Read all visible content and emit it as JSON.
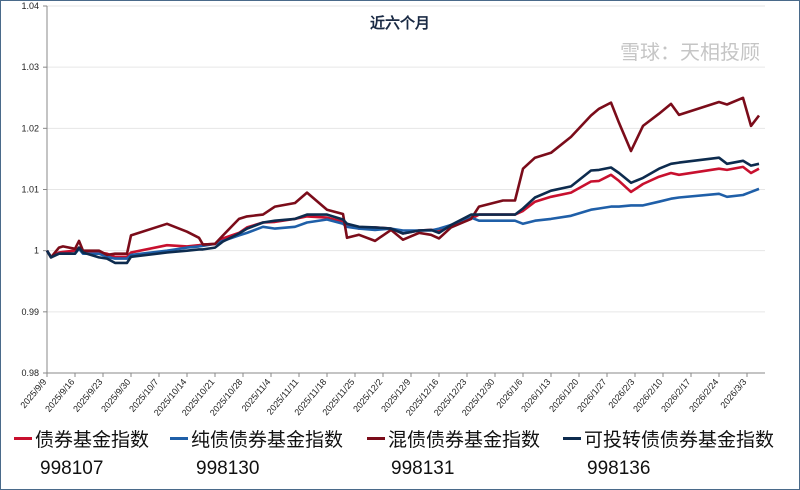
{
  "chart_data": {
    "type": "line",
    "title": "近六个月",
    "xlabel": "",
    "ylabel": "",
    "ylim": [
      0.98,
      1.04
    ],
    "yticks": [
      "0.98",
      "0.99",
      "1",
      "1.01",
      "1.02",
      "1.03",
      "1.04"
    ],
    "xticks": [
      "2025/9/9",
      "2025/9/16",
      "2025/9/23",
      "2025/9/30",
      "2025/10/7",
      "2025/10/14",
      "2025/10/21",
      "2025/10/28",
      "2025/11/4",
      "2025/11/11",
      "2025/11/18",
      "2025/11/25",
      "2025/12/2",
      "2025/12/9",
      "2025/12/16",
      "2025/12/23",
      "2025/12/30",
      "2026/1/6",
      "2026/1/13",
      "2026/1/20",
      "2026/1/27",
      "2026/2/3",
      "2026/2/10",
      "2026/2/17",
      "2026/2/24",
      "2026/3/3"
    ],
    "grid": "horizontal",
    "legend": "bottom",
    "x": [
      "2025-09-09",
      "2025-09-10",
      "2025-09-12",
      "2025-09-13",
      "2025-09-16",
      "2025-09-17",
      "2025-09-18",
      "2025-09-22",
      "2025-09-24",
      "2025-09-26",
      "2025-09-29",
      "2025-09-30",
      "2025-10-09",
      "2025-10-14",
      "2025-10-17",
      "2025-10-18",
      "2025-10-21",
      "2025-10-23",
      "2025-10-27",
      "2025-10-29",
      "2025-11-02",
      "2025-11-05",
      "2025-11-10",
      "2025-11-13",
      "2025-11-18",
      "2025-11-22",
      "2025-11-23",
      "2025-11-26",
      "2025-11-30",
      "2025-12-04",
      "2025-12-07",
      "2025-12-11",
      "2025-12-14",
      "2025-12-16",
      "2025-12-19",
      "2025-12-24",
      "2025-12-26",
      "2026-01-01",
      "2026-01-04",
      "2026-01-06",
      "2026-01-09",
      "2026-01-13",
      "2026-01-18",
      "2026-01-23",
      "2026-01-25",
      "2026-01-28",
      "2026-01-30",
      "2026-02-02",
      "2026-02-05",
      "2026-02-09",
      "2026-02-12",
      "2026-02-14",
      "2026-02-24",
      "2026-02-26",
      "2026-03-02",
      "2026-03-04",
      "2026-03-06"
    ],
    "series": [
      {
        "name": "债券基金指数",
        "code": "998107",
        "color": "#c8102e",
        "values": [
          1.0,
          0.999,
          0.9997,
          0.9998,
          1.0,
          1.0005,
          1.0,
          0.9997,
          0.9995,
          0.999,
          0.999,
          0.9997,
          1.0009,
          1.0007,
          1.0009,
          1.001,
          1.0011,
          1.002,
          1.0029,
          1.0038,
          1.0046,
          1.0047,
          1.0052,
          1.0056,
          1.0054,
          1.0047,
          1.0042,
          1.0036,
          1.0038,
          1.0036,
          1.0028,
          1.0033,
          1.0034,
          1.0033,
          1.0039,
          1.0052,
          1.0059,
          1.0059,
          1.0059,
          1.0065,
          1.008,
          1.0088,
          1.0095,
          1.0113,
          1.0114,
          1.0124,
          1.0114,
          1.0096,
          1.0109,
          1.0121,
          1.0127,
          1.0124,
          1.0134,
          1.0132,
          1.0137,
          1.0127,
          1.0134
        ]
      },
      {
        "name": "纯债债券基金指数",
        "code": "998130",
        "color": "#1f5fa8",
        "values": [
          1.0,
          0.999,
          0.9995,
          0.9995,
          0.9995,
          1.0003,
          0.9995,
          0.9995,
          0.999,
          0.9987,
          0.9987,
          0.9993,
          1.0,
          1.0005,
          1.0007,
          1.0008,
          1.0011,
          1.0016,
          1.0025,
          1.0029,
          1.0039,
          1.0036,
          1.0039,
          1.0046,
          1.0051,
          1.0044,
          1.0039,
          1.0036,
          1.0034,
          1.0036,
          1.0033,
          1.0033,
          1.0033,
          1.0036,
          1.0042,
          1.0054,
          1.0049,
          1.0049,
          1.0049,
          1.0044,
          1.0049,
          1.0052,
          1.0057,
          1.0067,
          1.0069,
          1.0072,
          1.0072,
          1.0074,
          1.0074,
          1.008,
          1.0085,
          1.0087,
          1.0093,
          1.0088,
          1.0091,
          1.0096,
          1.0101
        ]
      },
      {
        "name": "混债债券基金指数",
        "code": "998131",
        "color": "#7b0c1a",
        "values": [
          1.0,
          0.9989,
          1.0005,
          1.0007,
          1.0003,
          1.0016,
          1.0,
          1.0,
          0.9993,
          0.9995,
          0.9995,
          1.0025,
          1.0044,
          1.0031,
          1.0021,
          1.001,
          1.0011,
          1.0025,
          1.0052,
          1.0056,
          1.0059,
          1.0072,
          1.0078,
          1.0095,
          1.0067,
          1.006,
          1.0021,
          1.0026,
          1.0016,
          1.0034,
          1.0018,
          1.0029,
          1.0026,
          1.002,
          1.0038,
          1.0052,
          1.0072,
          1.0082,
          1.0082,
          1.0134,
          1.0152,
          1.016,
          1.0186,
          1.0221,
          1.0232,
          1.0242,
          1.0209,
          1.0163,
          1.0204,
          1.0224,
          1.024,
          1.0222,
          1.0243,
          1.0239,
          1.025,
          1.0204,
          1.0221
        ]
      },
      {
        "name": "可投转债债券基金指数",
        "code": "998136",
        "color": "#0d2b4e",
        "values": [
          1.0,
          0.9989,
          0.9995,
          0.9995,
          0.9995,
          1.0005,
          0.9997,
          0.9989,
          0.9987,
          0.998,
          0.998,
          0.999,
          0.9997,
          1.0,
          1.0002,
          1.0002,
          1.0005,
          1.0015,
          1.0028,
          1.0036,
          1.0046,
          1.0049,
          1.0052,
          1.0059,
          1.0059,
          1.0051,
          1.0044,
          1.0039,
          1.0038,
          1.0036,
          1.0028,
          1.0033,
          1.0034,
          1.0029,
          1.0042,
          1.0059,
          1.0059,
          1.0059,
          1.0059,
          1.0069,
          1.0087,
          1.0098,
          1.0105,
          1.0131,
          1.0132,
          1.0136,
          1.0127,
          1.0111,
          1.0119,
          1.0134,
          1.0142,
          1.0144,
          1.0152,
          1.0142,
          1.0147,
          1.0139,
          1.0142
        ]
      }
    ]
  },
  "watermark": "雪球：天相投顾"
}
